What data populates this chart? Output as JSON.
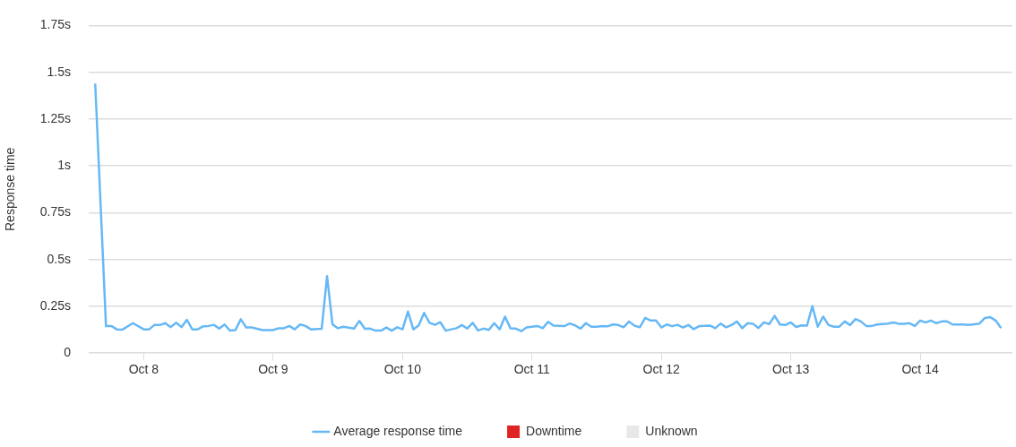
{
  "chart_data": {
    "type": "line",
    "ylabel": "Response time",
    "ylim": [
      0,
      1.75
    ],
    "yticks": [
      {
        "value": 0,
        "label": "0"
      },
      {
        "value": 0.25,
        "label": "0.25s"
      },
      {
        "value": 0.5,
        "label": "0.5s"
      },
      {
        "value": 0.75,
        "label": "0.75s"
      },
      {
        "value": 1,
        "label": "1s"
      },
      {
        "value": 1.25,
        "label": "1.25s"
      },
      {
        "value": 1.5,
        "label": "1.5s"
      },
      {
        "value": 1.75,
        "label": "1.75s"
      }
    ],
    "xlim": [
      "--10-07T13:48",
      "--10-14T17:06"
    ],
    "xticks": [
      {
        "value": "--10-08",
        "label": "Oct 8"
      },
      {
        "value": "--10-09",
        "label": "Oct 9"
      },
      {
        "value": "--10-10",
        "label": "Oct 10"
      },
      {
        "value": "--10-11",
        "label": "Oct 11"
      },
      {
        "value": "--10-12",
        "label": "Oct 12"
      },
      {
        "value": "--10-13",
        "label": "Oct 13"
      },
      {
        "value": "--10-14",
        "label": "Oct 14"
      }
    ],
    "grid": "y",
    "legend": "bottom",
    "marker": "none",
    "line_style": "solid",
    "x": [
      "--10-07T15:00",
      "--10-07T17:00",
      "--10-07T18:00",
      "--10-07T19:00",
      "--10-07T20:00",
      "--10-07T22:00",
      "--10-08T00:00",
      "--10-08T01:00",
      "--10-08T02:00",
      "--10-08T03:00",
      "--10-08T04:00",
      "--10-08T05:00",
      "--10-08T06:00",
      "--10-08T07:00",
      "--10-08T08:00",
      "--10-08T09:00",
      "--10-08T10:00",
      "--10-08T11:00",
      "--10-08T12:00",
      "--10-08T13:00",
      "--10-08T14:00",
      "--10-08T15:00",
      "--10-08T16:00",
      "--10-08T17:00",
      "--10-08T18:00",
      "--10-08T19:00",
      "--10-08T20:00",
      "--10-08T22:00",
      "--10-09T00:00",
      "--10-09T01:00",
      "--10-09T02:00",
      "--10-09T03:00",
      "--10-09T04:00",
      "--10-09T05:00",
      "--10-09T06:00",
      "--10-09T07:00",
      "--10-09T09:00",
      "--10-09T10:00",
      "--10-09T11:00",
      "--10-09T12:00",
      "--10-09T13:00",
      "--10-09T15:00",
      "--10-09T16:00",
      "--10-09T17:00",
      "--10-09T18:00",
      "--10-09T19:00",
      "--10-09T20:00",
      "--10-09T21:00",
      "--10-09T22:00",
      "--10-09T23:00",
      "--10-10T00:00",
      "--10-10T01:00",
      "--10-10T02:00",
      "--10-10T03:00",
      "--10-10T04:00",
      "--10-10T05:00",
      "--10-10T06:00",
      "--10-10T07:00",
      "--10-10T08:00",
      "--10-10T10:00",
      "--10-10T11:00",
      "--10-10T12:00",
      "--10-10T13:00",
      "--10-10T14:00",
      "--10-10T15:00",
      "--10-10T16:00",
      "--10-10T17:00",
      "--10-10T18:00",
      "--10-10T19:00",
      "--10-10T20:00",
      "--10-10T21:00",
      "--10-10T22:00",
      "--10-10T23:00",
      "--10-11T01:00",
      "--10-11T02:00",
      "--10-11T03:00",
      "--10-11T04:00",
      "--10-11T06:00",
      "--10-11T07:00",
      "--10-11T08:00",
      "--10-11T09:00",
      "--10-11T10:00",
      "--10-11T11:00",
      "--10-11T12:00",
      "--10-11T13:00",
      "--10-11T14:00",
      "--10-11T15:00",
      "--10-11T16:00",
      "--10-11T17:00",
      "--10-11T18:00",
      "--10-11T19:00",
      "--10-11T20:00",
      "--10-11T21:00",
      "--10-11T22:00",
      "--10-11T23:00",
      "--10-12T00:00",
      "--10-12T01:00",
      "--10-12T02:00",
      "--10-12T03:00",
      "--10-12T04:00",
      "--10-12T05:00",
      "--10-12T06:00",
      "--10-12T07:00",
      "--10-12T09:00",
      "--10-12T10:00",
      "--10-12T11:00",
      "--10-12T12:00",
      "--10-12T13:00",
      "--10-12T14:00",
      "--10-12T15:00",
      "--10-12T16:00",
      "--10-12T17:00",
      "--10-12T18:00",
      "--10-12T19:00",
      "--10-12T20:00",
      "--10-12T21:00",
      "--10-12T22:00",
      "--10-12T23:00",
      "--10-13T00:00",
      "--10-13T01:00",
      "--10-13T02:00",
      "--10-13T03:00",
      "--10-13T04:00",
      "--10-13T05:00",
      "--10-13T06:00",
      "--10-13T07:00",
      "--10-13T08:00",
      "--10-13T09:00",
      "--10-13T10:00",
      "--10-13T11:00",
      "--10-13T12:00",
      "--10-13T13:00",
      "--10-13T14:00",
      "--10-13T15:00",
      "--10-13T16:00",
      "--10-13T18:00",
      "--10-13T19:00",
      "--10-13T20:00",
      "--10-13T21:00",
      "--10-13T22:00",
      "--10-13T23:00",
      "--10-14T00:00",
      "--10-14T01:00",
      "--10-14T02:00",
      "--10-14T03:00",
      "--10-14T04:00",
      "--10-14T05:00",
      "--10-14T06:00",
      "--10-14T08:00",
      "--10-14T09:00",
      "--10-14T11:00",
      "--10-14T12:00",
      "--10-14T13:00",
      "--10-14T14:00",
      "--10-14T15:00"
    ],
    "series": [
      {
        "name": "Average response time",
        "color": "#66b8f5",
        "values": [
          1.44,
          0.145,
          0.145,
          0.127,
          0.125,
          0.16,
          0.127,
          0.127,
          0.151,
          0.15,
          0.16,
          0.139,
          0.162,
          0.139,
          0.178,
          0.127,
          0.127,
          0.143,
          0.145,
          0.151,
          0.131,
          0.153,
          0.12,
          0.123,
          0.181,
          0.137,
          0.137,
          0.123,
          0.123,
          0.133,
          0.133,
          0.145,
          0.127,
          0.153,
          0.145,
          0.127,
          0.13,
          0.411,
          0.154,
          0.133,
          0.141,
          0.131,
          0.172,
          0.13,
          0.131,
          0.12,
          0.12,
          0.137,
          0.12,
          0.138,
          0.127,
          0.222,
          0.127,
          0.148,
          0.215,
          0.162,
          0.151,
          0.165,
          0.12,
          0.133,
          0.15,
          0.131,
          0.162,
          0.121,
          0.131,
          0.124,
          0.16,
          0.127,
          0.195,
          0.133,
          0.131,
          0.117,
          0.137,
          0.145,
          0.133,
          0.167,
          0.147,
          0.144,
          0.158,
          0.148,
          0.131,
          0.16,
          0.141,
          0.141,
          0.145,
          0.143,
          0.153,
          0.15,
          0.138,
          0.169,
          0.147,
          0.138,
          0.188,
          0.174,
          0.174,
          0.137,
          0.153,
          0.144,
          0.151,
          0.137,
          0.15,
          0.128,
          0.144,
          0.147,
          0.133,
          0.158,
          0.138,
          0.15,
          0.169,
          0.133,
          0.16,
          0.157,
          0.134,
          0.164,
          0.155,
          0.199,
          0.153,
          0.15,
          0.164,
          0.14,
          0.148,
          0.147,
          0.251,
          0.141,
          0.195,
          0.15,
          0.141,
          0.141,
          0.169,
          0.15,
          0.182,
          0.169,
          0.145,
          0.145,
          0.153,
          0.158,
          0.164,
          0.157,
          0.157,
          0.16,
          0.145,
          0.174,
          0.164,
          0.174,
          0.16,
          0.169,
          0.169,
          0.153,
          0.153,
          0.151,
          0.158,
          0.188,
          0.192,
          0.174,
          0.134
        ]
      },
      {
        "name": "Downtime",
        "type": "bar",
        "color": "#e02424",
        "values": [
          null,
          null,
          null,
          null,
          null,
          null,
          null,
          null,
          null,
          null,
          null,
          null,
          null,
          null,
          null,
          null,
          null,
          null,
          null,
          null,
          null,
          null,
          null,
          null,
          null,
          null,
          null,
          null,
          null,
          null,
          null,
          null,
          null,
          null,
          null,
          null,
          null,
          null,
          null,
          null,
          null,
          null,
          null,
          null,
          null,
          null,
          null,
          null,
          null,
          null,
          null,
          null,
          null,
          null,
          null,
          null,
          null,
          null,
          null,
          null,
          null,
          null,
          null,
          null,
          null,
          null,
          null,
          null,
          null,
          null,
          null,
          null,
          null,
          null,
          null,
          null,
          null,
          null,
          null,
          null,
          null,
          null,
          null,
          null,
          null,
          null,
          null,
          null,
          null,
          null,
          null,
          null,
          null,
          null,
          null,
          null,
          null,
          null,
          null,
          null,
          null,
          null,
          null,
          null,
          null,
          null,
          null,
          null,
          null,
          null,
          null,
          null,
          null,
          null,
          null,
          null,
          null,
          null,
          null,
          null,
          null,
          null,
          null,
          null,
          null,
          null,
          null,
          null,
          null,
          null,
          null,
          null,
          null,
          null,
          null,
          null,
          null,
          null,
          null,
          null,
          null,
          null,
          null,
          null,
          null,
          null,
          null,
          null,
          null,
          null,
          null,
          null,
          null,
          null,
          null
        ]
      },
      {
        "name": "Unknown",
        "type": "bar",
        "color": "#e8e8e8",
        "values": [
          null,
          null,
          null,
          null,
          null,
          null,
          null,
          null,
          null,
          null,
          null,
          null,
          null,
          null,
          null,
          null,
          null,
          null,
          null,
          null,
          null,
          null,
          null,
          null,
          null,
          null,
          null,
          null,
          null,
          null,
          null,
          null,
          null,
          null,
          null,
          null,
          null,
          null,
          null,
          null,
          null,
          null,
          null,
          null,
          null,
          null,
          null,
          null,
          null,
          null,
          null,
          null,
          null,
          null,
          null,
          null,
          null,
          null,
          null,
          null,
          null,
          null,
          null,
          null,
          null,
          null,
          null,
          null,
          null,
          null,
          null,
          null,
          null,
          null,
          null,
          null,
          null,
          null,
          null,
          null,
          null,
          null,
          null,
          null,
          null,
          null,
          null,
          null,
          null,
          null,
          null,
          null,
          null,
          null,
          null,
          null,
          null,
          null,
          null,
          null,
          null,
          null,
          null,
          null,
          null,
          null,
          null,
          null,
          null,
          null,
          null,
          null,
          null,
          null,
          null,
          null,
          null,
          null,
          null,
          null,
          null,
          null,
          null,
          null,
          null,
          null,
          null,
          null,
          null,
          null,
          null,
          null,
          null,
          null,
          null,
          null,
          null,
          null,
          null,
          null,
          null,
          null,
          null,
          null,
          null,
          null,
          null,
          null,
          null,
          null,
          null,
          null,
          null,
          null,
          null
        ]
      }
    ]
  }
}
